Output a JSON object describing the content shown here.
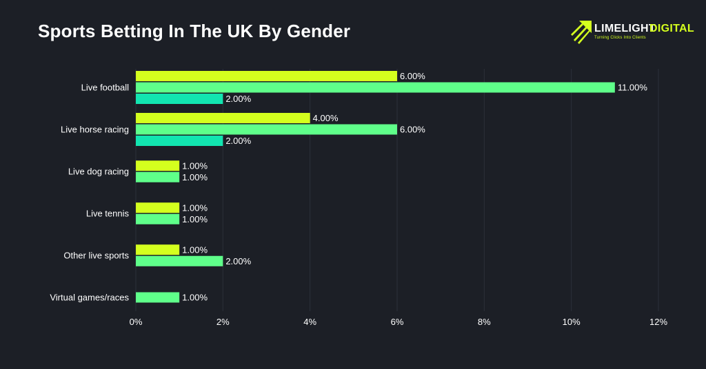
{
  "title": "Sports Betting In The UK By Gender",
  "logo": {
    "word1": "LIMELIGHT",
    "word2": "DIGITAL",
    "tagline": "Turning Clicks Into Clients",
    "icon": "arrow-streak-logo-icon"
  },
  "colors": {
    "background": "#1c1f26",
    "grid": "#2c3039",
    "series": [
      "#d4ff1e",
      "#5fff8a",
      "#12e5b0"
    ],
    "label_text": "#ffffff"
  },
  "chart_data": {
    "type": "bar",
    "orientation": "horizontal",
    "categories": [
      "Live football",
      "Live horse racing",
      "Live dog racing",
      "Live tennis",
      "Other live sports",
      "Virtual games/races"
    ],
    "series": [
      {
        "values": [
          6,
          4,
          1,
          1,
          1,
          null
        ]
      },
      {
        "values": [
          11,
          6,
          1,
          1,
          2,
          1
        ]
      },
      {
        "values": [
          2,
          2,
          null,
          null,
          null,
          null
        ]
      }
    ],
    "value_labels": [
      [
        "6.00%",
        "11.00%",
        "2.00%"
      ],
      [
        "4.00%",
        "6.00%",
        "2.00%"
      ],
      [
        "1.00%",
        "1.00%"
      ],
      [
        "1.00%",
        "1.00%"
      ],
      [
        "1.00%",
        "2.00%"
      ],
      [
        "1.00%"
      ]
    ],
    "xlim": [
      0,
      12
    ],
    "xticks": [
      "0%",
      "2%",
      "4%",
      "6%",
      "8%",
      "10%",
      "12%"
    ],
    "grid": true,
    "legend": "none"
  }
}
